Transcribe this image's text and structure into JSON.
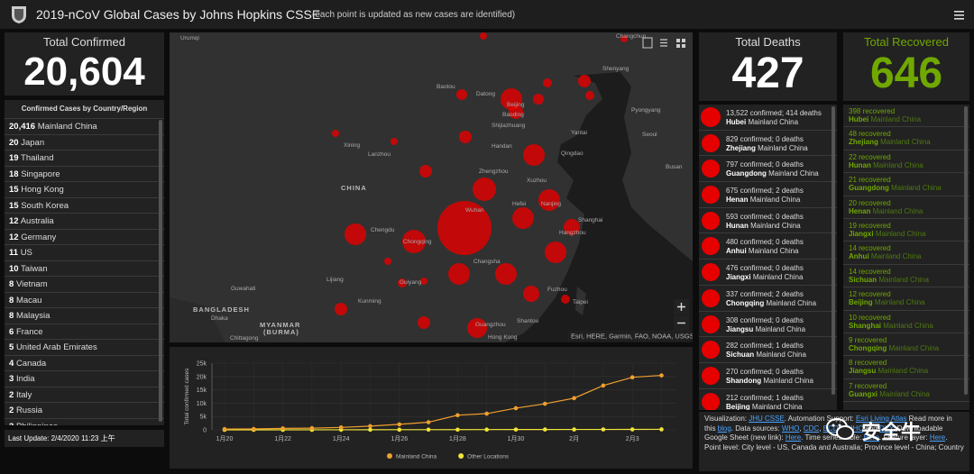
{
  "header": {
    "title": "2019-nCoV Global Cases by Johns Hopkins CSSE",
    "subtitle": "(each point is updated as new cases are identified)"
  },
  "total_confirmed": {
    "label": "Total Confirmed",
    "value": "20,604"
  },
  "country_list": {
    "title": "Confirmed Cases by Country/Region",
    "rows": [
      {
        "count": "20,416",
        "name": "Mainland China"
      },
      {
        "count": "20",
        "name": "Japan"
      },
      {
        "count": "19",
        "name": "Thailand"
      },
      {
        "count": "18",
        "name": "Singapore"
      },
      {
        "count": "15",
        "name": "Hong Kong"
      },
      {
        "count": "15",
        "name": "South Korea"
      },
      {
        "count": "12",
        "name": "Australia"
      },
      {
        "count": "12",
        "name": "Germany"
      },
      {
        "count": "11",
        "name": "US"
      },
      {
        "count": "10",
        "name": "Taiwan"
      },
      {
        "count": "8",
        "name": "Vietnam"
      },
      {
        "count": "8",
        "name": "Macau"
      },
      {
        "count": "8",
        "name": "Malaysia"
      },
      {
        "count": "6",
        "name": "France"
      },
      {
        "count": "5",
        "name": "United Arab Emirates"
      },
      {
        "count": "4",
        "name": "Canada"
      },
      {
        "count": "3",
        "name": "India"
      },
      {
        "count": "2",
        "name": "Italy"
      },
      {
        "count": "2",
        "name": "Russia"
      },
      {
        "count": "2",
        "name": "Philippines"
      }
    ]
  },
  "last_update": "Last Update: 2/4/2020 11:23 上午",
  "map": {
    "labels": [
      "Urumqi",
      "Changchun",
      "Shenyang",
      "Baotou",
      "Datong",
      "Beijing",
      "Baoding",
      "Pyongyang",
      "Seoul",
      "Busan",
      "Yantai",
      "Shijiazhuang",
      "Qingdao",
      "Handan",
      "Xining",
      "Lanzhou",
      "CHINA",
      "Zhengzhou",
      "Xuzhou",
      "Nanjing",
      "Hefei",
      "Wuhan",
      "Shanghai",
      "Chengdu",
      "Chongqing",
      "Hangzhou",
      "Changsha",
      "Guiyang",
      "Lijiang",
      "Kunming",
      "Fuzhou",
      "Taipei",
      "Guangzhou",
      "Shantou",
      "Hong Kong",
      "Guwahati",
      "BANGLADESH",
      "Dhaka",
      "MYANMAR",
      "(BURMA)",
      "Chittagong"
    ],
    "attribution": "Esri, HERE, Garmin, FAO, NOAA, USGS"
  },
  "chart_data": {
    "type": "line",
    "y_label": "Total confirmed cases",
    "categories": [
      "1月20",
      null,
      "1月22",
      null,
      "1月24",
      null,
      "1月26",
      null,
      "1月28",
      null,
      "1月30",
      null,
      "2月",
      null,
      "2月3",
      null
    ],
    "series": [
      {
        "name": "Mainland China",
        "color": "#f0a030",
        "values": [
          278,
          326,
          547,
          639,
          916,
          1399,
          2062,
          2863,
          5494,
          6070,
          8124,
          9783,
          11871,
          16607,
          19693,
          20416
        ]
      },
      {
        "name": "Other Locations",
        "color": "#f2e43a",
        "values": [
          4,
          6,
          8,
          14,
          25,
          40,
          57,
          64,
          74,
          98,
          116,
          132,
          146,
          153,
          159,
          188
        ]
      }
    ],
    "ylim": [
      0,
      25000
    ],
    "yticks": [
      0,
      {
        "value": 5000,
        "label": "5k"
      },
      {
        "value": 10000,
        "label": "10k"
      },
      {
        "value": 15000,
        "label": "15k"
      },
      {
        "value": 20000,
        "label": "20k"
      },
      {
        "value": 25000,
        "label": "25k"
      }
    ],
    "grid": true,
    "legend": "bottom"
  },
  "total_deaths": {
    "label": "Total Deaths",
    "value": "427"
  },
  "deaths_list": [
    {
      "stats": "13,522 confirmed; 414 deaths",
      "region": "Hubei",
      "country": "Mainland China"
    },
    {
      "stats": "829 confirmed; 0 deaths",
      "region": "Zhejiang",
      "country": "Mainland China"
    },
    {
      "stats": "797 confirmed; 0 deaths",
      "region": "Guangdong",
      "country": "Mainland China"
    },
    {
      "stats": "675 confirmed; 2 deaths",
      "region": "Henan",
      "country": "Mainland China"
    },
    {
      "stats": "593 confirmed; 0 deaths",
      "region": "Hunan",
      "country": "Mainland China"
    },
    {
      "stats": "480 confirmed; 0 deaths",
      "region": "Anhui",
      "country": "Mainland China"
    },
    {
      "stats": "476 confirmed; 0 deaths",
      "region": "Jiangxi",
      "country": "Mainland China"
    },
    {
      "stats": "337 confirmed; 2 deaths",
      "region": "Chongqing",
      "country": "Mainland China"
    },
    {
      "stats": "308 confirmed; 0 deaths",
      "region": "Jiangsu",
      "country": "Mainland China"
    },
    {
      "stats": "282 confirmed; 1 deaths",
      "region": "Sichuan",
      "country": "Mainland China"
    },
    {
      "stats": "270 confirmed; 0 deaths",
      "region": "Shandong",
      "country": "Mainland China"
    },
    {
      "stats": "212 confirmed; 1 deaths",
      "region": "Beijing",
      "country": "Mainland China"
    }
  ],
  "total_recovered": {
    "label": "Total Recovered",
    "value": "646"
  },
  "recovered_list": [
    {
      "stats": "398 recovered",
      "region": "Hubei",
      "country": "Mainland China"
    },
    {
      "stats": "48 recovered",
      "region": "Zhejiang",
      "country": "Mainland China"
    },
    {
      "stats": "22 recovered",
      "region": "Hunan",
      "country": "Mainland China"
    },
    {
      "stats": "21 recovered",
      "region": "Guangdong",
      "country": "Mainland China"
    },
    {
      "stats": "20 recovered",
      "region": "Henan",
      "country": "Mainland China"
    },
    {
      "stats": "19 recovered",
      "region": "Jiangxi",
      "country": "Mainland China"
    },
    {
      "stats": "14 recovered",
      "region": "Anhui",
      "country": "Mainland China"
    },
    {
      "stats": "14 recovered",
      "region": "Sichuan",
      "country": "Mainland China"
    },
    {
      "stats": "12 recovered",
      "region": "Beijing",
      "country": "Mainland China"
    },
    {
      "stats": "10 recovered",
      "region": "Shanghai",
      "country": "Mainland China"
    },
    {
      "stats": "9 recovered",
      "region": "Chongqing",
      "country": "Mainland China"
    },
    {
      "stats": "8 recovered",
      "region": "Jiangsu",
      "country": "Mainland China"
    },
    {
      "stats": "7 recovered",
      "region": "Guangxi",
      "country": "Mainland China"
    }
  ],
  "info": [
    {
      "text": "Visualization: "
    },
    {
      "text": "JHU CSSE",
      "link": true
    },
    {
      "text": ". "
    },
    {
      "text": "Automation Support: "
    },
    {
      "text": "Esri Living Atlas",
      "link": true
    },
    {
      "text": " "
    },
    {
      "text": "Read more in this "
    },
    {
      "text": "blog",
      "link": true
    },
    {
      "text": ". "
    },
    {
      "text": "Data sources: "
    },
    {
      "text": "WHO",
      "link": true
    },
    {
      "text": ", "
    },
    {
      "text": "CDC",
      "link": true
    },
    {
      "text": ", "
    },
    {
      "text": "ECDC",
      "link": true
    },
    {
      "text": ", "
    },
    {
      "text": "NHC",
      "link": true
    },
    {
      "text": " and "
    },
    {
      "text": "DXY",
      "link": true
    },
    {
      "text": ". "
    },
    {
      "text": "Downloadable Google Sheet (new link): "
    },
    {
      "text": "Here",
      "link": true
    },
    {
      "text": ". Time series table: "
    },
    {
      "text": "Here",
      "link": true
    },
    {
      "text": ". Feature layer: "
    },
    {
      "text": "Here",
      "link": true
    },
    {
      "text": ". "
    },
    {
      "text": "Point level: City level - US, Canada and Australia; Province level - China; Country"
    }
  ],
  "watermark": "安全牛"
}
